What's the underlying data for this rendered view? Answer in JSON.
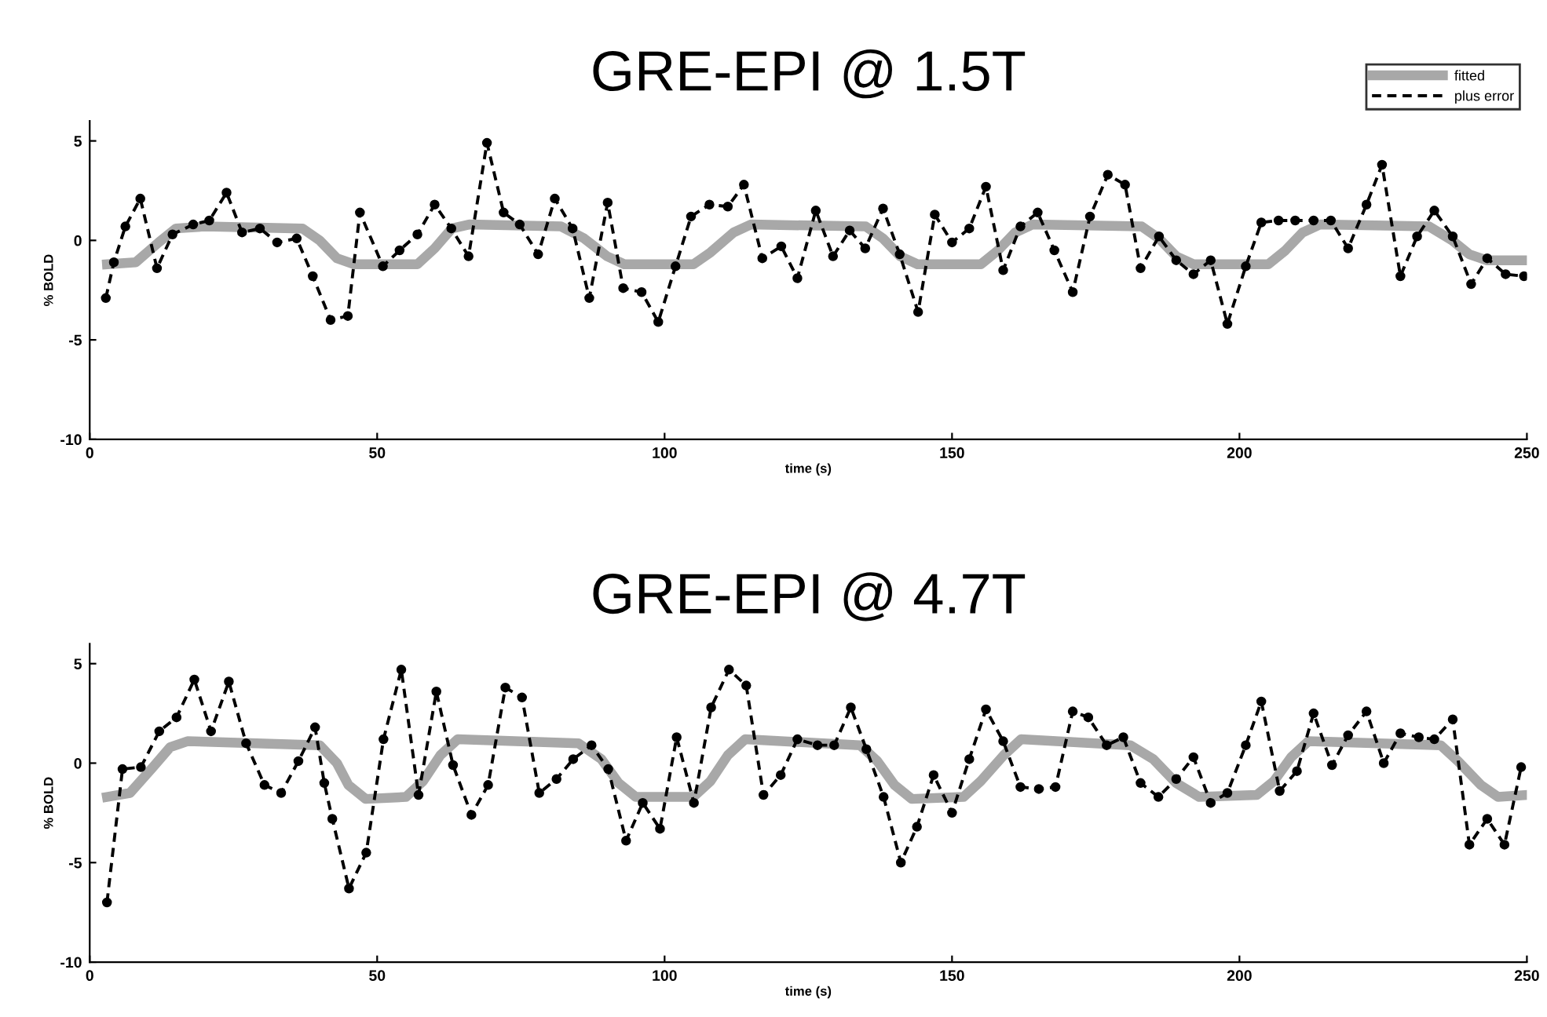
{
  "chart_data": [
    {
      "type": "line",
      "title": "GRE-EPI @ 1.5T",
      "xlabel": "time (s)",
      "ylabel": "% BOLD",
      "xlim": [
        0,
        250
      ],
      "xticks": [
        0,
        50,
        100,
        150,
        200,
        250
      ],
      "ylim": [
        -10,
        6
      ],
      "yticks": [
        -10,
        -5,
        0,
        5
      ],
      "grid": false,
      "legend": "top right",
      "series": [
        {
          "name": "fitted",
          "color": "#a8a8a8",
          "marker": "none",
          "line_style": "solid",
          "x": [
            3,
            8,
            12,
            15,
            20,
            37,
            40,
            43,
            46,
            57,
            60,
            63,
            66,
            82,
            86,
            90,
            93,
            105,
            108,
            112,
            115,
            135,
            138,
            141,
            144,
            155,
            158,
            161,
            164,
            183,
            186,
            189,
            192,
            205,
            208,
            211,
            214,
            233,
            237,
            240,
            243,
            250
          ],
          "values": [
            -1.2,
            -1.1,
            -0.1,
            0.6,
            0.7,
            0.6,
            0.0,
            -0.9,
            -1.2,
            -1.2,
            -0.4,
            0.6,
            0.8,
            0.7,
            0.1,
            -0.8,
            -1.2,
            -1.2,
            -0.6,
            0.4,
            0.8,
            0.7,
            0.1,
            -0.8,
            -1.2,
            -1.2,
            -0.5,
            0.4,
            0.8,
            0.7,
            0.1,
            -0.8,
            -1.2,
            -1.2,
            -0.5,
            0.4,
            0.8,
            0.7,
            0.0,
            -0.7,
            -1.0,
            -1.0
          ]
        },
        {
          "name": "plus error",
          "color": "#000000",
          "marker": "circle",
          "line_style": "dashed",
          "x": [
            2.8,
            4.2,
            6.2,
            8.8,
            11.7,
            14.4,
            18.0,
            20.8,
            23.8,
            26.5,
            29.6,
            32.6,
            36.0,
            38.8,
            41.9,
            44.9,
            47.0,
            51.0,
            53.9,
            57.0,
            60.0,
            62.9,
            65.9,
            69.1,
            72.0,
            74.8,
            78.0,
            80.9,
            84.0,
            86.9,
            90.1,
            92.8,
            96.0,
            98.9,
            101.9,
            104.6,
            107.8,
            111.0,
            113.8,
            117.0,
            120.3,
            123.1,
            126.3,
            129.3,
            132.2,
            134.9,
            138.0,
            140.9,
            144.1,
            147.0,
            150.0,
            153.0,
            155.9,
            158.9,
            161.9,
            164.9,
            167.8,
            171.0,
            174.0,
            177.1,
            180.1,
            182.8,
            186.0,
            189.0,
            192.0,
            195.0,
            197.9,
            201.1,
            203.8,
            206.8,
            209.7,
            212.9,
            215.9,
            218.9,
            222.1,
            224.8,
            228.0,
            230.9,
            233.9,
            237.1,
            240.3,
            243.1,
            246.3,
            249.5
          ],
          "values": [
            -2.9,
            -1.1,
            0.7,
            2.1,
            -1.4,
            0.3,
            0.8,
            1.0,
            2.4,
            0.4,
            0.6,
            -0.1,
            0.1,
            -1.8,
            -4.0,
            -3.8,
            1.4,
            -1.3,
            -0.5,
            0.3,
            1.8,
            0.6,
            -0.8,
            4.9,
            1.4,
            0.8,
            -0.7,
            2.1,
            0.6,
            -2.9,
            1.9,
            -2.4,
            -2.6,
            -4.1,
            -1.3,
            1.2,
            1.8,
            1.7,
            2.8,
            -0.9,
            -0.3,
            -1.9,
            1.5,
            -0.8,
            0.5,
            -0.4,
            1.6,
            -0.7,
            -3.6,
            1.3,
            -0.1,
            0.6,
            2.7,
            -1.5,
            0.7,
            1.4,
            -0.5,
            -2.6,
            1.2,
            3.3,
            2.8,
            -1.4,
            0.2,
            -1.0,
            -1.7,
            -1.0,
            -4.2,
            -1.3,
            0.9,
            1.0,
            1.0,
            1.0,
            1.0,
            -0.4,
            1.8,
            3.8,
            -1.8,
            0.2,
            1.5,
            0.2,
            -2.2,
            -0.9,
            -1.7,
            -1.8
          ]
        }
      ]
    },
    {
      "type": "line",
      "title": "GRE-EPI @ 4.7T",
      "xlabel": "time (s)",
      "ylabel": "% BOLD",
      "xlim": [
        0,
        250
      ],
      "xticks": [
        0,
        50,
        100,
        150,
        200,
        250
      ],
      "ylim": [
        -10,
        6
      ],
      "yticks": [
        -10,
        -5,
        0,
        5
      ],
      "grid": false,
      "series": [
        {
          "color": "#a8a8a8",
          "marker": "none",
          "line_style": "solid",
          "x": [
            3,
            7,
            11,
            14,
            17,
            40,
            43,
            45,
            48,
            55,
            58,
            61,
            64,
            85,
            89,
            92,
            95,
            105,
            108,
            111,
            114,
            134,
            137,
            140,
            143,
            152,
            155,
            159,
            162,
            181,
            185,
            189,
            193,
            203,
            206,
            209,
            212,
            235,
            238,
            242,
            245,
            250
          ],
          "values": [
            -1.7,
            -1.5,
            -0.2,
            0.8,
            1.1,
            0.9,
            0.0,
            -1.1,
            -1.8,
            -1.7,
            -0.9,
            0.4,
            1.2,
            1.0,
            0.2,
            -1.0,
            -1.7,
            -1.7,
            -0.9,
            0.4,
            1.2,
            0.9,
            0.1,
            -1.1,
            -1.8,
            -1.7,
            -0.9,
            0.4,
            1.2,
            0.9,
            0.2,
            -1.0,
            -1.7,
            -1.6,
            -0.9,
            0.3,
            1.1,
            0.9,
            0.1,
            -1.1,
            -1.7,
            -1.6
          ]
        },
        {
          "color": "#000000",
          "marker": "circle",
          "line_style": "dashed",
          "x": [
            3.0,
            5.7,
            8.9,
            12.1,
            15.1,
            18.2,
            21.1,
            24.2,
            27.2,
            30.4,
            33.3,
            36.3,
            39.2,
            40.8,
            42.2,
            45.1,
            48.1,
            51.1,
            54.2,
            57.2,
            60.3,
            63.2,
            66.4,
            69.3,
            72.3,
            75.2,
            78.2,
            81.2,
            84.1,
            87.3,
            90.2,
            93.3,
            96.2,
            99.2,
            102.1,
            105.1,
            108.1,
            111.2,
            114.2,
            117.2,
            120.2,
            123.1,
            126.6,
            129.5,
            132.4,
            135.1,
            138.1,
            141.1,
            143.9,
            146.8,
            150.0,
            153.0,
            155.9,
            158.9,
            161.9,
            165.1,
            168.0,
            171.0,
            173.7,
            176.9,
            179.8,
            182.8,
            185.9,
            189.0,
            192.0,
            195.0,
            197.9,
            201.1,
            203.8,
            207.0,
            210.0,
            212.9,
            216.1,
            218.9,
            222.1,
            225.1,
            228.0,
            231.2,
            233.9,
            237.1,
            240.0,
            243.1,
            246.1,
            249.0
          ],
          "values": [
            -7.0,
            -0.3,
            -0.2,
            1.6,
            2.3,
            4.2,
            1.6,
            4.1,
            1.0,
            -1.1,
            -1.5,
            0.1,
            1.8,
            -1.0,
            -2.8,
            -6.3,
            -4.5,
            1.2,
            4.7,
            -1.6,
            3.6,
            -0.1,
            -2.6,
            -1.1,
            3.8,
            3.3,
            -1.5,
            -0.8,
            0.2,
            0.9,
            -0.3,
            -3.9,
            -2.0,
            -3.3,
            1.3,
            -2.0,
            2.8,
            4.7,
            3.9,
            -1.6,
            -0.6,
            1.2,
            0.9,
            0.9,
            2.8,
            0.7,
            -1.7,
            -5.0,
            -3.2,
            -0.6,
            -2.5,
            0.2,
            2.7,
            1.1,
            -1.2,
            -1.3,
            -1.2,
            2.6,
            2.3,
            0.9,
            1.3,
            -1.0,
            -1.7,
            -0.8,
            0.3,
            -2.0,
            -1.5,
            0.9,
            3.1,
            -1.4,
            -0.4,
            2.5,
            -0.1,
            1.4,
            2.6,
            0.0,
            1.5,
            1.3,
            1.2,
            2.2,
            -4.1,
            -2.8,
            -4.1,
            -0.2
          ]
        }
      ]
    }
  ]
}
